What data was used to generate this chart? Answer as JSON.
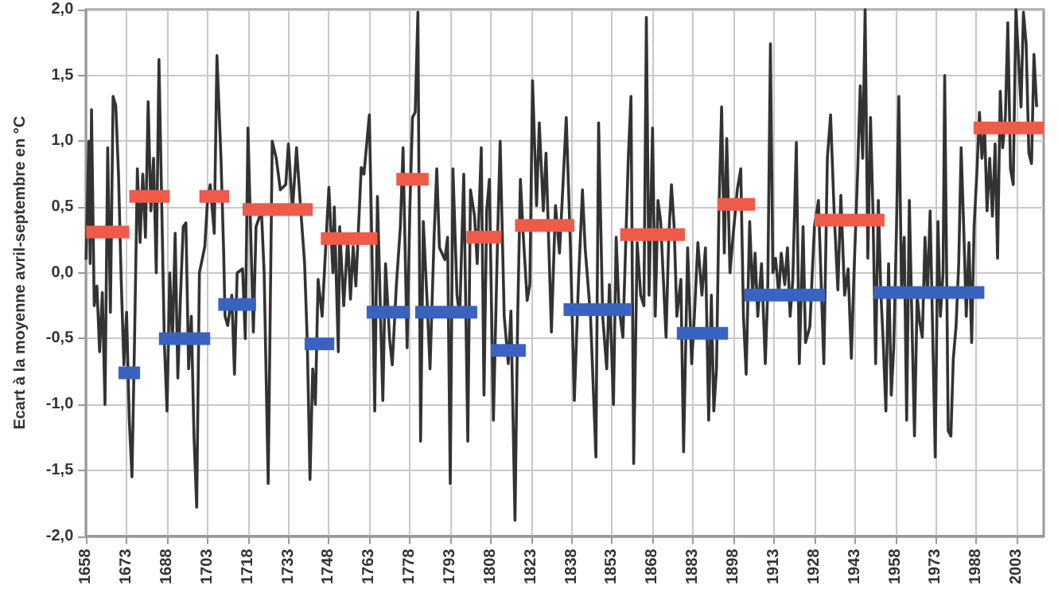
{
  "chart_data": {
    "type": "line",
    "ylabel": "Ecart à la moyenne avril-septembre en °C",
    "xlim": [
      1658,
      2013
    ],
    "ylim": [
      -2,
      2
    ],
    "xticks": [
      1658,
      1673,
      1688,
      1703,
      1718,
      1733,
      1748,
      1763,
      1778,
      1793,
      1808,
      1823,
      1838,
      1853,
      1868,
      1883,
      1898,
      1913,
      1928,
      1943,
      1958,
      1973,
      1988,
      2003
    ],
    "yticks": [
      {
        "value": -2,
        "label": "-2,0"
      },
      {
        "value": -1.5,
        "label": "-1,5"
      },
      {
        "value": -1,
        "label": "-1,0"
      },
      {
        "value": -0.5,
        "label": "-0,5"
      },
      {
        "value": 0,
        "label": "0,0"
      },
      {
        "value": 0.5,
        "label": "0,5"
      },
      {
        "value": 1,
        "label": "1,0"
      },
      {
        "value": 1.5,
        "label": "1,5"
      },
      {
        "value": 2,
        "label": "2,0"
      }
    ],
    "grid": true,
    "marker": "none",
    "line_style": "solid",
    "series": [
      {
        "color": "#333333",
        "x": [
          1658,
          1659,
          1659.5,
          1660,
          1661,
          1662,
          1663,
          1664,
          1665,
          1666,
          1667,
          1668,
          1669,
          1670,
          1671,
          1672,
          1673,
          1674,
          1675,
          1676,
          1677,
          1678,
          1679,
          1680,
          1681,
          1682,
          1683,
          1684,
          1685,
          1686,
          1687,
          1688,
          1689,
          1690,
          1691,
          1692,
          1693,
          1694,
          1695,
          1696,
          1697,
          1698,
          1699,
          1700,
          1702,
          1703,
          1704,
          1705.5,
          1706.5,
          1708,
          1709,
          1709.5,
          1710.5,
          1712,
          1713,
          1714,
          1716,
          1717,
          1718,
          1720,
          1721,
          1723,
          1724,
          1725.5,
          1727,
          1728.5,
          1730,
          1732,
          1733,
          1734.5,
          1736,
          1737.5,
          1739,
          1740,
          1741,
          1742,
          1743,
          1744,
          1745.5,
          1746.5,
          1748,
          1749.5,
          1750,
          1751.5,
          1752,
          1753.5,
          1755,
          1756,
          1757,
          1758,
          1760,
          1761,
          1763,
          1764,
          1765,
          1766,
          1767,
          1768,
          1769,
          1770.5,
          1771.5,
          1773,
          1774.5,
          1775.5,
          1777,
          1778,
          1779,
          1780,
          1781,
          1782,
          1783,
          1784.5,
          1785.5,
          1787,
          1788,
          1789,
          1791,
          1792,
          1793,
          1794,
          1795.5,
          1796.5,
          1798,
          1799.5,
          1800.5,
          1802,
          1803,
          1804.5,
          1805.5,
          1806.5,
          1807.5,
          1809,
          1810.5,
          1811.5,
          1813,
          1814.5,
          1815.5,
          1817,
          1818,
          1819,
          1820,
          1821.5,
          1822.5,
          1823.5,
          1825,
          1826,
          1827.5,
          1828.5,
          1830.5,
          1832,
          1833.5,
          1834.5,
          1836,
          1837.5,
          1839,
          1840.5,
          1842,
          1843,
          1845,
          1847,
          1848,
          1849.5,
          1851,
          1852,
          1853.5,
          1854.5,
          1855.5,
          1857,
          1859,
          1860,
          1861,
          1862.3,
          1863.6,
          1864.8,
          1865.7,
          1866.7,
          1868,
          1869,
          1870,
          1871,
          1873,
          1874,
          1875,
          1876,
          1877,
          1878.5,
          1879.5,
          1881,
          1882.5,
          1883.5,
          1884.8,
          1886.3,
          1887.6,
          1888.8,
          1889.8,
          1890.7,
          1891.7,
          1892.6,
          1893.6,
          1894.6,
          1895.5,
          1896.7,
          1897.8,
          1899.4,
          1900.7,
          1901.7,
          1902.7,
          1904,
          1905.1,
          1906,
          1907,
          1908.4,
          1909.8,
          1910.7,
          1911.7,
          1912.6,
          1913.6,
          1914.8,
          1915.7,
          1917,
          1918,
          1919,
          1920,
          1921.3,
          1922.4,
          1923.8,
          1924.7,
          1926.3,
          1928,
          1929.5,
          1931.5,
          1932.8,
          1934,
          1935.3,
          1936.7,
          1937.8,
          1939.2,
          1940.5,
          1941.7,
          1942.6,
          1944,
          1945,
          1945.9,
          1946.8,
          1947.8,
          1948.8,
          1949.7,
          1950.7,
          1951.7,
          1952.6,
          1953.6,
          1954.5,
          1955.5,
          1956.5,
          1957.4,
          1958.4,
          1959.3,
          1960.3,
          1961.3,
          1962.2,
          1963.2,
          1964.2,
          1965.1,
          1966.1,
          1967,
          1968,
          1969,
          1969.9,
          1970.9,
          1971.8,
          1972.8,
          1973.8,
          1974.7,
          1975.7,
          1976.3,
          1977,
          1977.6,
          1978.6,
          1979.5,
          1980.5,
          1981.5,
          1982.4,
          1983.4,
          1984.3,
          1985.3,
          1986.3,
          1987.2,
          1988.2,
          1989.2,
          1990.1,
          1991.1,
          1992,
          1993,
          1994,
          1995,
          1995.9,
          1996.9,
          1997.8,
          1998.8,
          1999.7,
          2000.7,
          2001.7,
          2002.7,
          2003.6,
          2004.6,
          2005.5,
          2006.5,
          2007.5,
          2008.5,
          2009.4,
          2010.4
        ],
        "values": [
          0.1,
          1.0,
          0.07,
          1.24,
          -0.25,
          -0.1,
          -0.6,
          -0.15,
          -1.0,
          0.95,
          -0.3,
          1.34,
          1.27,
          0.75,
          -0.05,
          -0.7,
          -0.3,
          -1.12,
          -1.55,
          -0.45,
          0.79,
          0.23,
          0.75,
          0.27,
          1.3,
          0.47,
          0.87,
          0,
          1.62,
          0.55,
          -0.53,
          -1.05,
          0,
          -0.53,
          0.3,
          -0.8,
          -0.17,
          0.35,
          0.38,
          -0.73,
          -0.33,
          -1.25,
          -1.78,
          0,
          0.2,
          0.55,
          0.67,
          0.3,
          1.65,
          0.87,
          0.15,
          -0.33,
          -0.4,
          -0.17,
          -0.77,
          0,
          0.03,
          -0.5,
          1.1,
          -0.45,
          0.35,
          0.47,
          0,
          -1.6,
          1.0,
          0.87,
          0.63,
          0.67,
          0.98,
          0.47,
          0.95,
          0.5,
          0.07,
          -0.53,
          -1.57,
          -0.73,
          -1.0,
          -0.05,
          -0.33,
          0.07,
          0.65,
          0,
          0.5,
          -0.6,
          0.35,
          -0.25,
          0.27,
          -0.2,
          0.2,
          -0.1,
          0.8,
          0.75,
          1.2,
          0.15,
          -1.05,
          0.58,
          -0.2,
          -0.97,
          0.07,
          -0.5,
          -0.7,
          -0.1,
          0.35,
          0.95,
          -0.57,
          0.47,
          1.18,
          1.22,
          1.98,
          -1.28,
          0.39,
          -0.25,
          -0.73,
          0.27,
          0.79,
          0.19,
          0.1,
          0.27,
          -1.6,
          0.79,
          -0.17,
          -0.33,
          0.75,
          -1.28,
          0.63,
          0.43,
          0.07,
          0.95,
          -0.93,
          0.47,
          0.71,
          -1.12,
          0.23,
          1.0,
          -0.33,
          -0.69,
          -0.29,
          -1.88,
          -0.33,
          0.71,
          0.31,
          -0.21,
          -0.09,
          1.46,
          0.51,
          1.14,
          0.47,
          0.91,
          -0.45,
          0.51,
          0.15,
          0.55,
          1.18,
          0.23,
          -0.97,
          -0.09,
          0.63,
          0.19,
          -0.33,
          -1.4,
          1.14,
          -0.33,
          -0.73,
          -0.09,
          -1.0,
          0.27,
          -0.25,
          -0.49,
          0.87,
          1.34,
          -1.45,
          0.23,
          -0.17,
          -0.25,
          1.94,
          -0.17,
          1.1,
          -0.33,
          0.55,
          0.39,
          -0.49,
          0.27,
          0.67,
          0.35,
          -0.33,
          -0.05,
          -1.36,
          0.19,
          -0.69,
          -0.33,
          0.23,
          -0.17,
          0.19,
          -1.12,
          -0.17,
          -1.05,
          -0.73,
          0.47,
          1.26,
          0.15,
          1.02,
          0,
          0.27,
          0.63,
          0.79,
          -0.33,
          -0.77,
          0.39,
          -0.17,
          0.15,
          -0.33,
          0.07,
          -0.69,
          -0.13,
          1.74,
          0,
          0.11,
          -0.17,
          0.15,
          -0.09,
          0.19,
          -0.33,
          -0.05,
          0.99,
          -0.69,
          0.35,
          -0.53,
          -0.41,
          0.35,
          0.55,
          -0.69,
          0.87,
          1.2,
          0.47,
          -0.13,
          0.59,
          -0.17,
          0.03,
          -0.65,
          -0.05,
          0.75,
          1.42,
          0.87,
          2.0,
          0.11,
          1.18,
          0.47,
          -0.69,
          0.55,
          -0.13,
          -0.57,
          -1.05,
          0.07,
          -0.93,
          -0.57,
          0.31,
          1.34,
          -0.13,
          0.27,
          -1.12,
          0.55,
          -0.41,
          -1.24,
          -0.17,
          -0.37,
          -0.49,
          0.27,
          -0.17,
          0.47,
          -0.41,
          -1.4,
          0.39,
          -0.33,
          0,
          1.5,
          0.07,
          -1.2,
          -1.24,
          -0.65,
          -0.41,
          0.07,
          0.95,
          0.31,
          -0.33,
          0.23,
          -0.53,
          0.35,
          0.75,
          1.22,
          0.87,
          1.1,
          0.47,
          0.87,
          0.43,
          0.98,
          0.11,
          1.38,
          0.95,
          1.18,
          1.9,
          0.79,
          0.67,
          2.0,
          1.66,
          1.26,
          1.98,
          1.74,
          0.91,
          0.83,
          1.66,
          1.26
        ]
      },
      {
        "color": "#f05a48",
        "x": [
          1658,
          1674
        ],
        "values": [
          0.31,
          0.31
        ]
      },
      {
        "color": "#f05a48",
        "x": [
          1674,
          1689
        ],
        "values": [
          0.58,
          0.58
        ]
      },
      {
        "color": "#f05a48",
        "x": [
          1700,
          1711
        ],
        "values": [
          0.58,
          0.58
        ]
      },
      {
        "color": "#f05a48",
        "x": [
          1716,
          1742
        ],
        "values": [
          0.48,
          0.48
        ]
      },
      {
        "color": "#f05a48",
        "x": [
          1745,
          1766
        ],
        "values": [
          0.26,
          0.26
        ]
      },
      {
        "color": "#f05a48",
        "x": [
          1773,
          1785
        ],
        "values": [
          0.71,
          0.71
        ]
      },
      {
        "color": "#f05a48",
        "x": [
          1799,
          1812
        ],
        "values": [
          0.27,
          0.27
        ]
      },
      {
        "color": "#f05a48",
        "x": [
          1817,
          1839
        ],
        "values": [
          0.36,
          0.36
        ]
      },
      {
        "color": "#f05a48",
        "x": [
          1856,
          1880
        ],
        "values": [
          0.29,
          0.29
        ]
      },
      {
        "color": "#f05a48",
        "x": [
          1892,
          1906
        ],
        "values": [
          0.52,
          0.52
        ]
      },
      {
        "color": "#f05a48",
        "x": [
          1928,
          1954
        ],
        "values": [
          0.4,
          0.4
        ]
      },
      {
        "color": "#f05a48",
        "x": [
          1987,
          2013
        ],
        "values": [
          1.1,
          1.1
        ]
      },
      {
        "color": "#3a62c0",
        "x": [
          1670,
          1678
        ],
        "values": [
          -0.76,
          -0.76
        ]
      },
      {
        "color": "#3a62c0",
        "x": [
          1685,
          1704
        ],
        "values": [
          -0.5,
          -0.5
        ]
      },
      {
        "color": "#3a62c0",
        "x": [
          1707,
          1721
        ],
        "values": [
          -0.24,
          -0.24
        ]
      },
      {
        "color": "#3a62c0",
        "x": [
          1739,
          1750
        ],
        "values": [
          -0.54,
          -0.54
        ]
      },
      {
        "color": "#3a62c0",
        "x": [
          1762,
          1778
        ],
        "values": [
          -0.3,
          -0.3
        ]
      },
      {
        "color": "#3a62c0",
        "x": [
          1780,
          1803
        ],
        "values": [
          -0.3,
          -0.3
        ]
      },
      {
        "color": "#3a62c0",
        "x": [
          1808,
          1821
        ],
        "values": [
          -0.59,
          -0.59
        ]
      },
      {
        "color": "#3a62c0",
        "x": [
          1835,
          1860
        ],
        "values": [
          -0.28,
          -0.28
        ]
      },
      {
        "color": "#3a62c0",
        "x": [
          1877,
          1896
        ],
        "values": [
          -0.46,
          -0.46
        ]
      },
      {
        "color": "#3a62c0",
        "x": [
          1902,
          1932
        ],
        "values": [
          -0.17,
          -0.17
        ]
      },
      {
        "color": "#3a62c0",
        "x": [
          1950,
          1991
        ],
        "values": [
          -0.15,
          -0.15
        ]
      }
    ]
  }
}
